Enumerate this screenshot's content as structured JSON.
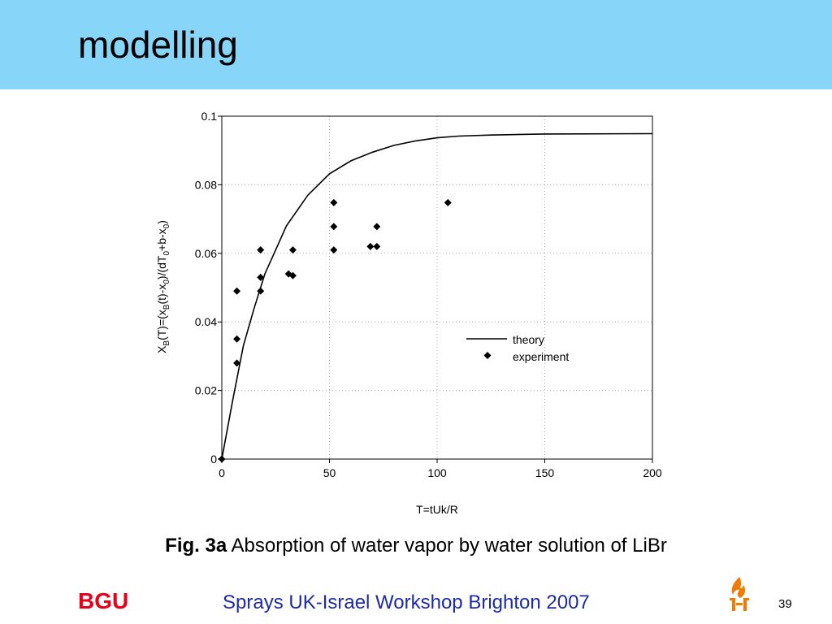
{
  "slide": {
    "title": "modelling",
    "caption_bold": "Fig. 3a",
    "caption_text": " Absorption of water vapor by water solution of LiBr",
    "footer_brand": "BGU",
    "footer_text": "Sprays UK-Israel Workshop Brighton 2007",
    "page_number": "39",
    "header_color": "#87d5f8",
    "brand_color": "#e8001a",
    "footer_text_color": "#1c2aa8",
    "logo_icon": "bgu-flame-logo-icon"
  },
  "chart_data": {
    "type": "scatter",
    "title": "",
    "xlabel": "T=tUk/R",
    "ylabel": "X_B(T)=(x_B(t)-x_0)/(dT_0+b-x_0)",
    "xlim": [
      0,
      200
    ],
    "ylim": [
      0,
      0.1
    ],
    "x_ticks": [
      "0",
      "50",
      "100",
      "150",
      "200"
    ],
    "y_ticks": [
      "0",
      "0.02",
      "0.04",
      "0.06",
      "0.08",
      "0.1"
    ],
    "grid": true,
    "legend_position": "right",
    "series": [
      {
        "name": "theory",
        "kind": "line",
        "points": [
          [
            0,
            0
          ],
          [
            5,
            0.017
          ],
          [
            10,
            0.033
          ],
          [
            15,
            0.044
          ],
          [
            20,
            0.054
          ],
          [
            25,
            0.061
          ],
          [
            30,
            0.068
          ],
          [
            40,
            0.077
          ],
          [
            50,
            0.0832
          ],
          [
            60,
            0.087
          ],
          [
            70,
            0.0895
          ],
          [
            80,
            0.0915
          ],
          [
            90,
            0.0928
          ],
          [
            100,
            0.0937
          ],
          [
            110,
            0.0942
          ],
          [
            125,
            0.0945
          ],
          [
            150,
            0.0948
          ],
          [
            200,
            0.0949
          ]
        ]
      },
      {
        "name": "experiment",
        "kind": "scatter",
        "points": [
          [
            0,
            0
          ],
          [
            7,
            0.028
          ],
          [
            7,
            0.035
          ],
          [
            7,
            0.049
          ],
          [
            18,
            0.049
          ],
          [
            18,
            0.053
          ],
          [
            18,
            0.061
          ],
          [
            31,
            0.054
          ],
          [
            33,
            0.0535
          ],
          [
            33,
            0.061
          ],
          [
            52,
            0.061
          ],
          [
            52,
            0.0678
          ],
          [
            52,
            0.0748
          ],
          [
            69,
            0.062
          ],
          [
            72,
            0.062
          ],
          [
            72,
            0.0678
          ],
          [
            105,
            0.0748
          ]
        ]
      }
    ]
  }
}
